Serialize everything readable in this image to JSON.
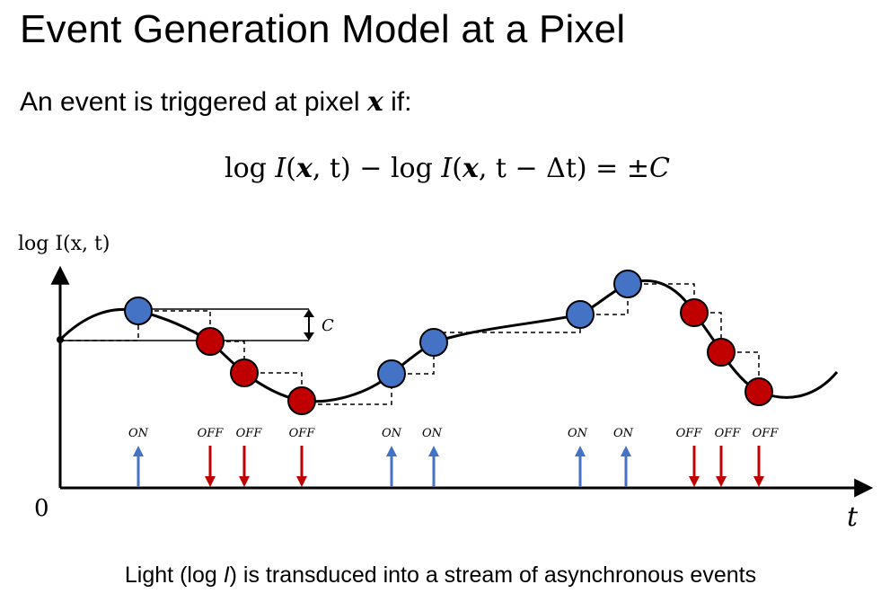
{
  "title": "Event Generation Model at a Pixel",
  "subtitle": {
    "prefix": "An event is triggered at pixel ",
    "variable": "x",
    "suffix": " if:"
  },
  "equation": {
    "log1": "log",
    "I1": "I",
    "args1_open": "(",
    "x1": "x",
    "args1_close": ", t)",
    "minus": " − ",
    "log2": "log",
    "I2": "I",
    "args2_open": "(",
    "x2": "x",
    "args2_close": ", t − Δt)",
    "equals": " = ±",
    "C": "C"
  },
  "y_axis_label": "log I(x, t)",
  "x_axis_label": "t",
  "origin_label": "0",
  "threshold_label": "C",
  "caption": {
    "prefix": "Light (log ",
    "I": "I",
    "suffix": ") is transduced into a stream of asynchronous events"
  },
  "colors": {
    "on": "#4472c4",
    "off": "#c00000",
    "curve": "#000000"
  },
  "events": [
    {
      "polarity": "ON",
      "label": "ON"
    },
    {
      "polarity": "OFF",
      "label": "OFF"
    },
    {
      "polarity": "OFF",
      "label": "OFF"
    },
    {
      "polarity": "OFF",
      "label": "OFF"
    },
    {
      "polarity": "ON",
      "label": "ON"
    },
    {
      "polarity": "ON",
      "label": "ON"
    },
    {
      "polarity": "ON",
      "label": "ON"
    },
    {
      "polarity": "ON",
      "label": "ON"
    },
    {
      "polarity": "OFF",
      "label": "OFF"
    },
    {
      "polarity": "OFF",
      "label": "OFF"
    },
    {
      "polarity": "OFF",
      "label": "OFF"
    }
  ]
}
